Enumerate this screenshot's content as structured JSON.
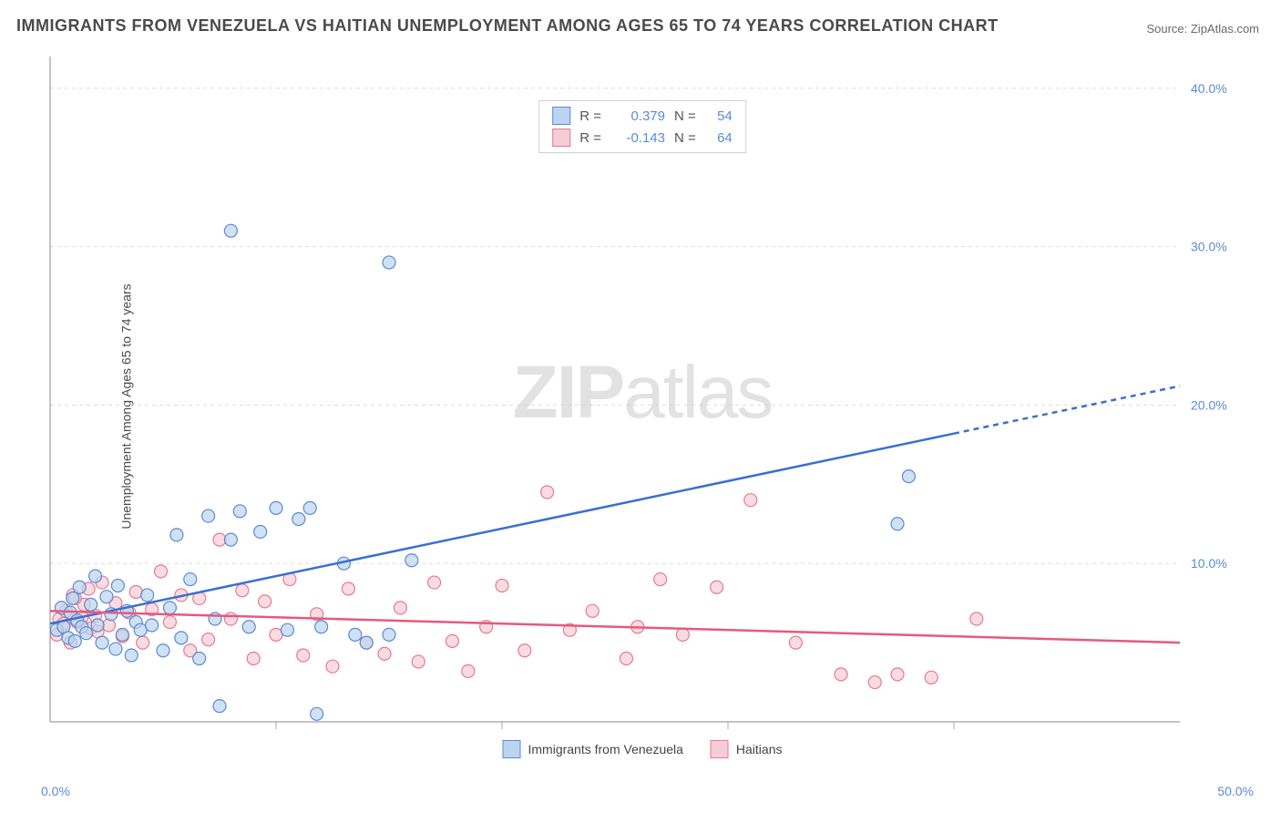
{
  "title": "IMMIGRANTS FROM VENEZUELA VS HAITIAN UNEMPLOYMENT AMONG AGES 65 TO 74 YEARS CORRELATION CHART",
  "source": "Source: ZipAtlas.com",
  "ylabel": "Unemployment Among Ages 65 to 74 years",
  "watermark_a": "ZIP",
  "watermark_b": "atlas",
  "chart": {
    "type": "scatter",
    "xlim": [
      0,
      50
    ],
    "ylim": [
      0,
      42
    ],
    "xtick_step": 10,
    "ytick_step": 10,
    "xtick_labels": [
      "0.0%",
      "",
      "",
      "",
      "",
      "50.0%"
    ],
    "ytick_labels": [
      "",
      "10.0%",
      "20.0%",
      "30.0%",
      "40.0%"
    ],
    "background_color": "#ffffff",
    "grid_color": "#dddddd",
    "grid_dash": "4,4",
    "axis_line_color": "#888888",
    "tick_color": "#aaaaaa",
    "axis_label_color": "#5b8bd4",
    "marker_radius": 7,
    "marker_stroke_width": 1.2,
    "series": [
      {
        "name": "Immigrants from Venezuela",
        "fill": "#bcd4ef",
        "stroke": "#5b8bd4",
        "line_color": "#3b6fd1",
        "line_solid_to_x": 40,
        "line_dash": "6,5",
        "line_y_at_x0": 6.2,
        "line_y_at_xmax": 21.2,
        "R": "0.379",
        "N": "54",
        "points": [
          [
            0.3,
            5.8
          ],
          [
            0.5,
            7.2
          ],
          [
            0.6,
            6.0
          ],
          [
            0.8,
            5.3
          ],
          [
            0.9,
            6.9
          ],
          [
            1.0,
            7.8
          ],
          [
            1.1,
            5.1
          ],
          [
            1.2,
            6.4
          ],
          [
            1.3,
            8.5
          ],
          [
            1.4,
            6.0
          ],
          [
            1.6,
            5.6
          ],
          [
            1.8,
            7.4
          ],
          [
            2.0,
            9.2
          ],
          [
            2.1,
            6.1
          ],
          [
            2.3,
            5.0
          ],
          [
            2.5,
            7.9
          ],
          [
            2.7,
            6.8
          ],
          [
            2.9,
            4.6
          ],
          [
            3.0,
            8.6
          ],
          [
            3.2,
            5.5
          ],
          [
            3.4,
            7.0
          ],
          [
            3.6,
            4.2
          ],
          [
            3.8,
            6.3
          ],
          [
            4.0,
            5.8
          ],
          [
            4.3,
            8.0
          ],
          [
            4.5,
            6.1
          ],
          [
            5.0,
            4.5
          ],
          [
            5.3,
            7.2
          ],
          [
            5.6,
            11.8
          ],
          [
            5.8,
            5.3
          ],
          [
            6.2,
            9.0
          ],
          [
            6.6,
            4.0
          ],
          [
            7.0,
            13.0
          ],
          [
            7.3,
            6.5
          ],
          [
            7.5,
            1.0
          ],
          [
            8.0,
            11.5
          ],
          [
            8.4,
            13.3
          ],
          [
            8.8,
            6.0
          ],
          [
            9.3,
            12.0
          ],
          [
            10.0,
            13.5
          ],
          [
            10.5,
            5.8
          ],
          [
            11.0,
            12.8
          ],
          [
            11.5,
            13.5
          ],
          [
            12.0,
            6.0
          ],
          [
            13.0,
            10.0
          ],
          [
            13.5,
            5.5
          ],
          [
            14.0,
            5.0
          ],
          [
            15.0,
            5.5
          ],
          [
            16.0,
            10.2
          ],
          [
            11.8,
            0.5
          ],
          [
            8.0,
            31.0
          ],
          [
            15.0,
            29.0
          ],
          [
            37.5,
            12.5
          ],
          [
            38.0,
            15.5
          ]
        ]
      },
      {
        "name": "Haitians",
        "fill": "#f6cdd6",
        "stroke": "#e77a93",
        "line_color": "#e55a7d",
        "line_solid_to_x": 50,
        "line_dash": "",
        "line_y_at_x0": 7.0,
        "line_y_at_xmax": 5.0,
        "R": "-0.143",
        "N": "64",
        "points": [
          [
            0.4,
            6.5
          ],
          [
            0.7,
            7.0
          ],
          [
            1.0,
            8.0
          ],
          [
            1.2,
            6.3
          ],
          [
            1.5,
            7.4
          ],
          [
            1.8,
            5.9
          ],
          [
            2.0,
            6.7
          ],
          [
            2.3,
            8.8
          ],
          [
            2.6,
            6.1
          ],
          [
            2.9,
            7.5
          ],
          [
            3.2,
            5.4
          ],
          [
            3.5,
            6.9
          ],
          [
            3.8,
            8.2
          ],
          [
            4.1,
            5.0
          ],
          [
            4.5,
            7.1
          ],
          [
            4.9,
            9.5
          ],
          [
            5.3,
            6.3
          ],
          [
            5.8,
            8.0
          ],
          [
            6.2,
            4.5
          ],
          [
            6.6,
            7.8
          ],
          [
            7.0,
            5.2
          ],
          [
            7.5,
            11.5
          ],
          [
            8.0,
            6.5
          ],
          [
            8.5,
            8.3
          ],
          [
            9.0,
            4.0
          ],
          [
            9.5,
            7.6
          ],
          [
            10.0,
            5.5
          ],
          [
            10.6,
            9.0
          ],
          [
            11.2,
            4.2
          ],
          [
            11.8,
            6.8
          ],
          [
            12.5,
            3.5
          ],
          [
            13.2,
            8.4
          ],
          [
            14.0,
            5.0
          ],
          [
            14.8,
            4.3
          ],
          [
            15.5,
            7.2
          ],
          [
            16.3,
            3.8
          ],
          [
            17.0,
            8.8
          ],
          [
            17.8,
            5.1
          ],
          [
            18.5,
            3.2
          ],
          [
            19.3,
            6.0
          ],
          [
            20.0,
            8.6
          ],
          [
            21.0,
            4.5
          ],
          [
            22.0,
            14.5
          ],
          [
            23.0,
            5.8
          ],
          [
            24.0,
            7.0
          ],
          [
            25.5,
            4.0
          ],
          [
            27.0,
            9.0
          ],
          [
            28.0,
            5.5
          ],
          [
            29.5,
            8.5
          ],
          [
            31.0,
            14.0
          ],
          [
            33.0,
            5.0
          ],
          [
            35.0,
            3.0
          ],
          [
            36.5,
            2.5
          ],
          [
            37.5,
            3.0
          ],
          [
            39.0,
            2.8
          ],
          [
            41.0,
            6.5
          ],
          [
            0.3,
            5.5
          ],
          [
            0.6,
            6.2
          ],
          [
            0.9,
            5.0
          ],
          [
            1.1,
            7.8
          ],
          [
            1.4,
            6.6
          ],
          [
            1.7,
            8.4
          ],
          [
            2.1,
            5.7
          ],
          [
            26.0,
            6.0
          ]
        ]
      }
    ]
  },
  "legend": {
    "series1_label": "Immigrants from Venezuela",
    "series2_label": "Haitians"
  },
  "stats": {
    "r_label": "R =",
    "n_label": "N ="
  }
}
